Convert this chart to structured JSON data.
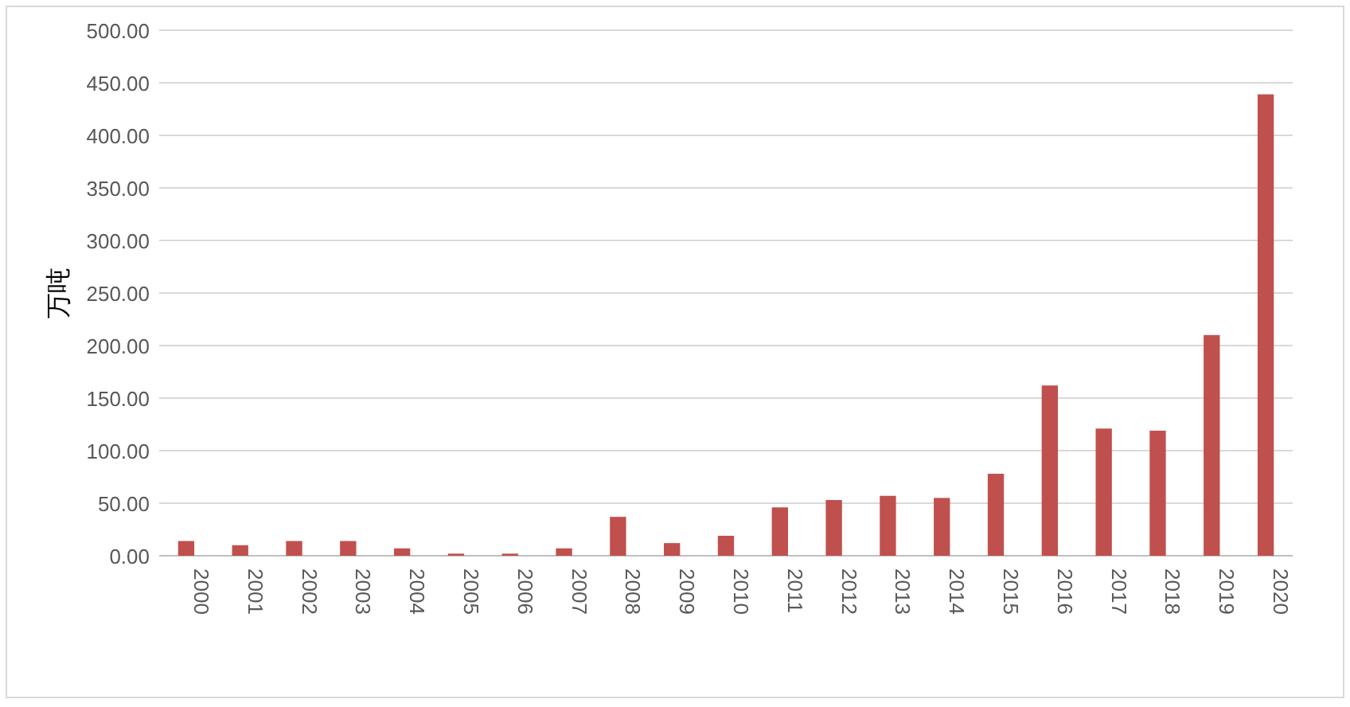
{
  "chart_data": {
    "type": "bar",
    "ylabel": "万吨",
    "categories": [
      "2000",
      "2001",
      "2002",
      "2003",
      "2004",
      "2005",
      "2006",
      "2007",
      "2008",
      "2009",
      "2010",
      "2011",
      "2012",
      "2013",
      "2014",
      "2015",
      "2016",
      "2017",
      "2018",
      "2019",
      "2020"
    ],
    "values": [
      14,
      10,
      14,
      14,
      7,
      2,
      2,
      7,
      37,
      12,
      19,
      46,
      53,
      57,
      55,
      78,
      162,
      121,
      119,
      210,
      439
    ],
    "color": "#c0504d",
    "ylim": [
      0,
      500
    ],
    "yticks": [
      {
        "value": 0,
        "label": "0.00"
      },
      {
        "value": 50,
        "label": "50.00"
      },
      {
        "value": 100,
        "label": "100.00"
      },
      {
        "value": 150,
        "label": "150.00"
      },
      {
        "value": 200,
        "label": "200.00"
      },
      {
        "value": 250,
        "label": "250.00"
      },
      {
        "value": 300,
        "label": "300.00"
      },
      {
        "value": 350,
        "label": "350.00"
      },
      {
        "value": 400,
        "label": "400.00"
      },
      {
        "value": 450,
        "label": "450.00"
      },
      {
        "value": 500,
        "label": "500.00"
      }
    ],
    "grid": "y"
  }
}
